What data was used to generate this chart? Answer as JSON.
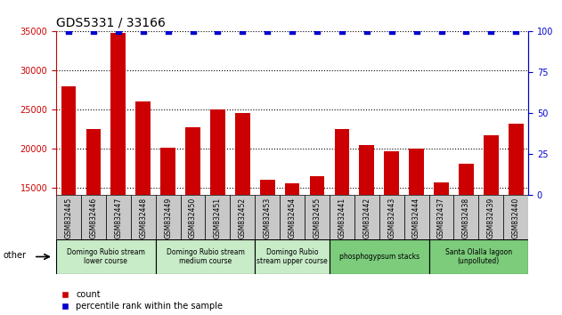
{
  "title": "GDS5331 / 33166",
  "samples": [
    "GSM832445",
    "GSM832446",
    "GSM832447",
    "GSM832448",
    "GSM832449",
    "GSM832450",
    "GSM832451",
    "GSM832452",
    "GSM832453",
    "GSM832454",
    "GSM832455",
    "GSM832441",
    "GSM832442",
    "GSM832443",
    "GSM832444",
    "GSM832437",
    "GSM832438",
    "GSM832439",
    "GSM832440"
  ],
  "counts": [
    28000,
    22500,
    34800,
    26000,
    20100,
    22700,
    25000,
    24600,
    16000,
    15500,
    16500,
    22500,
    20500,
    19700,
    20000,
    15600,
    18000,
    21700,
    23200
  ],
  "percentiles": [
    100,
    100,
    100,
    100,
    100,
    100,
    100,
    100,
    100,
    100,
    100,
    100,
    100,
    100,
    100,
    100,
    100,
    100,
    100
  ],
  "ylim_left": [
    14000,
    35000
  ],
  "ylim_right": [
    0,
    100
  ],
  "yticks_left": [
    15000,
    20000,
    25000,
    30000,
    35000
  ],
  "yticks_right": [
    0,
    25,
    50,
    75,
    100
  ],
  "groups": [
    {
      "label": "Domingo Rubio stream\nlower course",
      "start": 0,
      "end": 4,
      "color": "#c8ebc8"
    },
    {
      "label": "Domingo Rubio stream\nmedium course",
      "start": 4,
      "end": 8,
      "color": "#c8ebc8"
    },
    {
      "label": "Domingo Rubio\nstream upper course",
      "start": 8,
      "end": 11,
      "color": "#c8ebc8"
    },
    {
      "label": "phosphogypsum stacks",
      "start": 11,
      "end": 15,
      "color": "#7ccc7c"
    },
    {
      "label": "Santa Olalla lagoon\n(unpolluted)",
      "start": 15,
      "end": 19,
      "color": "#7ccc7c"
    }
  ],
  "bar_color": "#cc0000",
  "percentile_color": "#0000cc",
  "bg_color": "#ffffff",
  "xlabel_area_color": "#c8c8c8",
  "other_label": "other"
}
